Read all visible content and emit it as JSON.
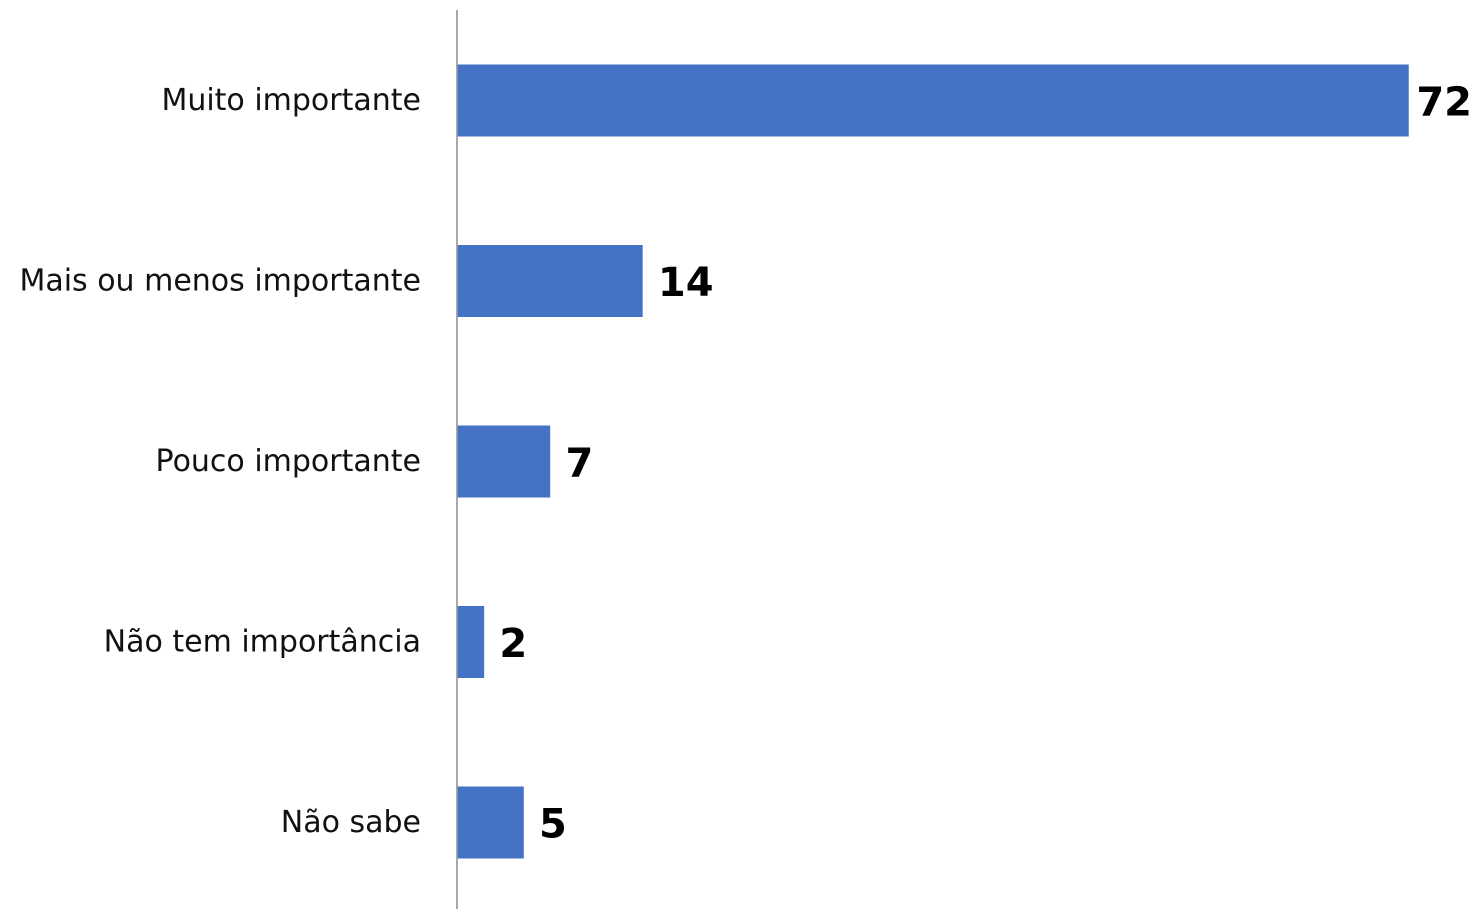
{
  "colors": {
    "bar": "#4472c4",
    "axis": "#8c8c8c",
    "category_text": "#111111",
    "value_text": "#000000",
    "background": "#ffffff"
  },
  "chart_data": {
    "type": "bar",
    "orientation": "horizontal",
    "title": "",
    "xlabel": "",
    "ylabel": "",
    "categories": [
      "Muito importante",
      "Mais ou menos importante",
      "Pouco importante",
      "Não tem importância",
      "Não sabe"
    ],
    "values": [
      72,
      14,
      7,
      2,
      5
    ],
    "data_labels": [
      "72",
      "14",
      "7",
      "2",
      "5"
    ],
    "xlim": [
      0,
      72
    ],
    "grid": false,
    "legend": "none",
    "value_axis_shown": false
  }
}
